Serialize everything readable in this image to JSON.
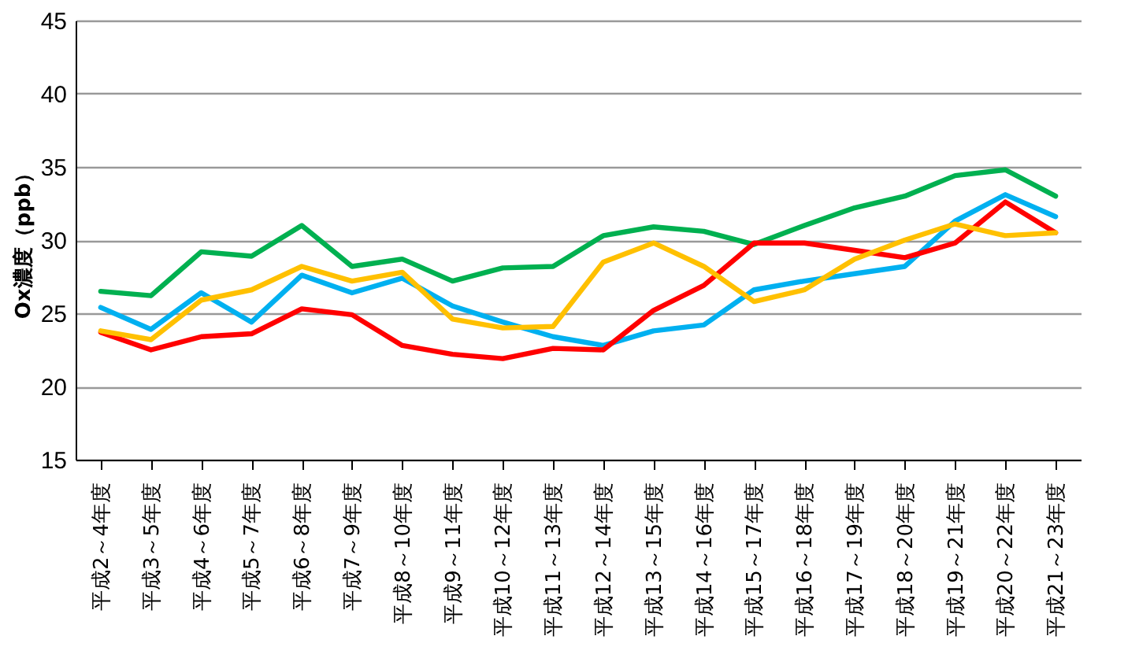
{
  "chart_data": {
    "type": "line",
    "ylabel": "Ox濃度（ppb）",
    "categories": [
      "平成2～4年度",
      "平成3～5年度",
      "平成4～6年度",
      "平成5～7年度",
      "平成6～8年度",
      "平成7～9年度",
      "平成8～10年度",
      "平成9～11年度",
      "平成10～12年度",
      "平成11～13年度",
      "平成12～14年度",
      "平成13～15年度",
      "平成14～16年度",
      "平成15～17年度",
      "平成16～18年度",
      "平成17～19年度",
      "平成18～20年度",
      "平成19～21年度",
      "平成20～22年度",
      "平成21～23年度"
    ],
    "series": [
      {
        "color": "#00b050",
        "values": [
          26.5,
          26.2,
          29.2,
          28.9,
          31.0,
          28.2,
          28.7,
          27.2,
          28.1,
          28.2,
          30.3,
          30.9,
          30.6,
          29.7,
          31.0,
          32.2,
          33.0,
          34.4,
          34.8,
          33.0
        ]
      },
      {
        "color": "#00b0f0",
        "values": [
          25.4,
          23.9,
          26.4,
          24.4,
          27.6,
          26.4,
          27.4,
          25.5,
          24.4,
          23.4,
          22.8,
          23.8,
          24.2,
          26.6,
          27.2,
          27.7,
          28.2,
          31.3,
          33.1,
          31.6
        ]
      },
      {
        "color": "#ff0000",
        "values": [
          23.7,
          22.5,
          23.4,
          23.6,
          25.3,
          24.9,
          22.8,
          22.2,
          21.9,
          22.6,
          22.5,
          25.2,
          26.9,
          29.8,
          29.8,
          29.3,
          28.8,
          29.8,
          32.6,
          30.5
        ]
      },
      {
        "color": "#ffc000",
        "values": [
          23.8,
          23.2,
          25.9,
          26.6,
          28.2,
          27.2,
          27.8,
          24.6,
          24.0,
          24.1,
          28.5,
          29.8,
          28.2,
          25.8,
          26.6,
          28.7,
          30.0,
          31.1,
          30.3,
          30.5
        ]
      }
    ],
    "ylim": [
      15,
      45
    ],
    "yticks": [
      15,
      20,
      25,
      30,
      35,
      40,
      45
    ],
    "grid": "y",
    "marker": "none",
    "line_style": "solid"
  }
}
